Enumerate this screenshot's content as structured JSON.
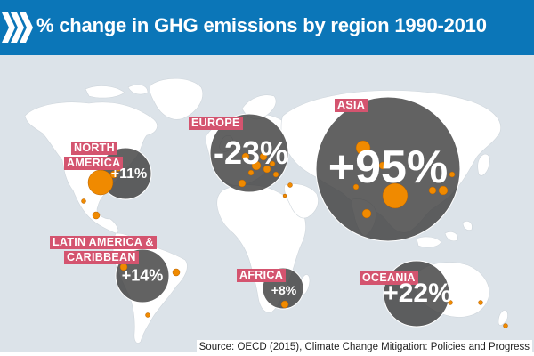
{
  "header": {
    "title": "% change in GHG emissions by region 1990-2010",
    "logo_icon": "oecd-chevrons-icon"
  },
  "regions": [
    {
      "id": "north-america",
      "label_lines": [
        "NORTH",
        "AMERICA"
      ],
      "change": "+11%"
    },
    {
      "id": "europe",
      "label_lines": [
        "EUROPE"
      ],
      "change": "-23%"
    },
    {
      "id": "asia",
      "label_lines": [
        "ASIA"
      ],
      "change": "+95%"
    },
    {
      "id": "latin-america",
      "label_lines": [
        "LATIN AMERICA &",
        "CARIBBEAN"
      ],
      "change": "+14%"
    },
    {
      "id": "africa",
      "label_lines": [
        "AFRICA"
      ],
      "change": "+8%"
    },
    {
      "id": "oceania",
      "label_lines": [
        "OCEANIA"
      ],
      "change": "+22%"
    }
  ],
  "source": "Source: OECD (2015), Climate Change Mitigation: Policies and Progress",
  "colors": {
    "header": "#0b76b8",
    "label": "#d4546f",
    "bubble": "#3f3f3f",
    "land": "#ffffff",
    "ocean": "#dce3e9",
    "dot": "#f08a00"
  }
}
